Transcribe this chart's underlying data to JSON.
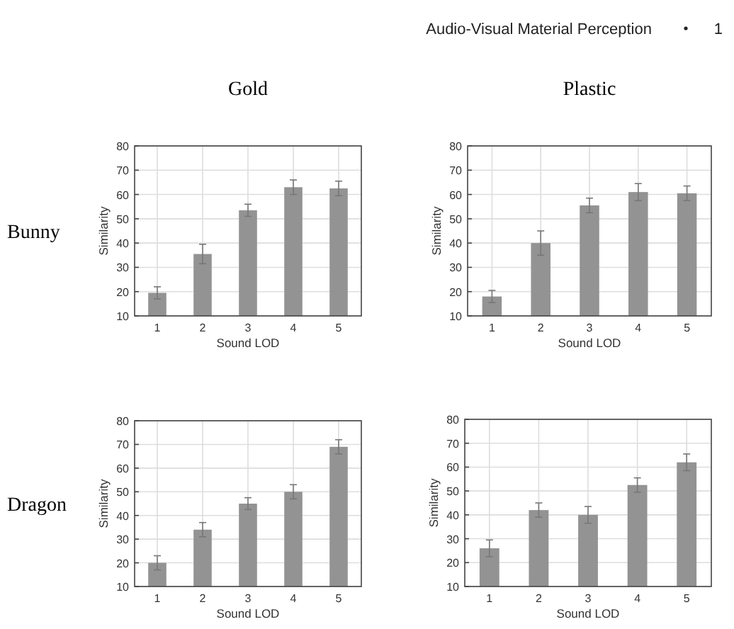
{
  "chart_data": [
    {
      "type": "bar",
      "title": "Gold",
      "annotations": [
        "Audio-Visual Material Perception",
        "1",
        "Bunny"
      ],
      "xlabel": "Sound LOD",
      "ylabel": "Similarity",
      "categories": [
        "1",
        "2",
        "3",
        "4",
        "5"
      ],
      "values": [
        19.5,
        35.5,
        53.5,
        63,
        62.5
      ],
      "errors": [
        2.5,
        4,
        2.5,
        3,
        3
      ],
      "color": "#939393",
      "ylim": [
        10,
        80
      ],
      "yticks": [
        10,
        20,
        30,
        40,
        50,
        60,
        70,
        80
      ],
      "grid": true
    },
    {
      "type": "bar",
      "title": "Plastic",
      "xlabel": "Sound LOD",
      "ylabel": "Similarity",
      "categories": [
        "1",
        "2",
        "3",
        "4",
        "5"
      ],
      "values": [
        18,
        40,
        55.5,
        61,
        60.5
      ],
      "errors": [
        2.5,
        5,
        3,
        3.5,
        3
      ],
      "color": "#939393",
      "ylim": [
        10,
        80
      ],
      "yticks": [
        10,
        20,
        30,
        40,
        50,
        60,
        70,
        80
      ],
      "grid": true
    },
    {
      "type": "bar",
      "annotations": [
        "Dragon"
      ],
      "xlabel": "Sound LOD",
      "ylabel": "Similarity",
      "categories": [
        "1",
        "2",
        "3",
        "4",
        "5"
      ],
      "values": [
        20,
        34,
        45,
        50,
        69
      ],
      "errors": [
        3,
        3,
        2.5,
        3,
        3
      ],
      "color": "#939393",
      "ylim": [
        10,
        80
      ],
      "yticks": [
        10,
        20,
        30,
        40,
        50,
        60,
        70,
        80
      ],
      "grid": true
    },
    {
      "type": "bar",
      "xlabel": "Sound LOD",
      "ylabel": "Similarity",
      "categories": [
        "1",
        "2",
        "3",
        "4",
        "5"
      ],
      "values": [
        26,
        42,
        40,
        52.5,
        62
      ],
      "errors": [
        3.5,
        3,
        3.5,
        3,
        3.5
      ],
      "color": "#939393",
      "ylim": [
        10,
        80
      ],
      "yticks": [
        10,
        20,
        30,
        40,
        50,
        60,
        70,
        80
      ],
      "grid": true
    }
  ]
}
